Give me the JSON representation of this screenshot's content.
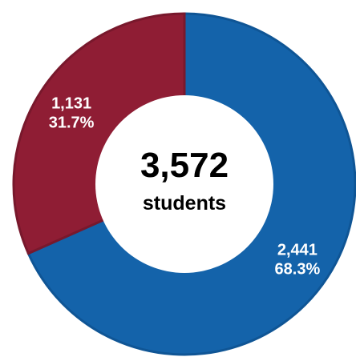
{
  "chart_data": {
    "type": "pie",
    "donut": true,
    "center": {
      "total": "3,572",
      "caption": "students"
    },
    "slices": [
      {
        "value": 2441,
        "value_label": "2,441",
        "percent_label": "68.3%",
        "color": "#1463aa",
        "edge_color": "#0f5595"
      },
      {
        "value": 1131,
        "value_label": "1,131",
        "percent_label": "31.7%",
        "color": "#8f1d34",
        "edge_color": "#78182c"
      }
    ],
    "start_angle_deg": 0,
    "direction": "clockwise",
    "legend": "none"
  }
}
